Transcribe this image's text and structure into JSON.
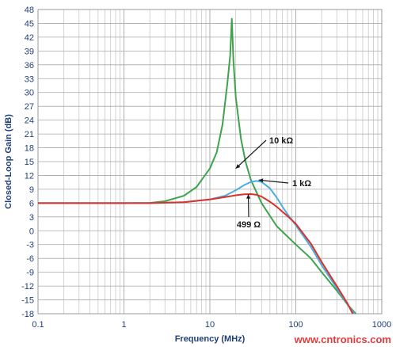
{
  "chart_data": {
    "type": "line",
    "xlabel": "Frequency (MHz)",
    "ylabel": "Closed-Loop Gain (dB)",
    "xscale": "log",
    "xlim": [
      0.1,
      1000
    ],
    "ylim": [
      -18,
      48
    ],
    "xticks": [
      "0.1",
      "1",
      "10",
      "100",
      "1000"
    ],
    "yticks": [
      "48",
      "45",
      "42",
      "39",
      "36",
      "33",
      "30",
      "27",
      "24",
      "21",
      "18",
      "15",
      "12",
      "9",
      "6",
      "3",
      "0",
      "-3",
      "-6",
      "-9",
      "-12",
      "-15",
      "-18"
    ],
    "grid": true,
    "series": [
      {
        "name": "10 kΩ",
        "color": "#3fa34d",
        "points": [
          [
            0.1,
            6
          ],
          [
            1,
            6
          ],
          [
            2,
            6.05
          ],
          [
            3,
            6.4
          ],
          [
            5,
            7.6
          ],
          [
            7,
            9.5
          ],
          [
            10,
            13.5
          ],
          [
            12,
            17
          ],
          [
            14,
            23
          ],
          [
            16,
            32
          ],
          [
            17.2,
            38
          ],
          [
            18,
            46
          ],
          [
            18.8,
            37
          ],
          [
            20,
            29
          ],
          [
            23,
            20
          ],
          [
            26,
            15
          ],
          [
            30,
            11
          ],
          [
            40,
            6
          ],
          [
            60,
            1
          ],
          [
            100,
            -3
          ],
          [
            150,
            -6
          ],
          [
            200,
            -9
          ],
          [
            300,
            -13
          ],
          [
            400,
            -16
          ],
          [
            500,
            -18
          ]
        ]
      },
      {
        "name": "1 kΩ",
        "color": "#4aaee0",
        "points": [
          [
            0.1,
            6
          ],
          [
            1,
            6
          ],
          [
            2,
            6
          ],
          [
            5,
            6.2
          ],
          [
            10,
            6.8
          ],
          [
            15,
            7.6
          ],
          [
            20,
            8.8
          ],
          [
            25,
            9.9
          ],
          [
            30,
            10.6
          ],
          [
            35,
            10.8
          ],
          [
            40,
            10.6
          ],
          [
            50,
            9.2
          ],
          [
            60,
            7.2
          ],
          [
            70,
            5.2
          ],
          [
            80,
            3.6
          ],
          [
            100,
            1.2
          ],
          [
            150,
            -3.5
          ],
          [
            200,
            -7.5
          ],
          [
            300,
            -12.5
          ],
          [
            400,
            -16
          ],
          [
            480,
            -18
          ]
        ]
      },
      {
        "name": "499 Ω",
        "color": "#d9312b",
        "points": [
          [
            0.1,
            6
          ],
          [
            1,
            6
          ],
          [
            2,
            6
          ],
          [
            5,
            6.2
          ],
          [
            10,
            6.8
          ],
          [
            15,
            7.3
          ],
          [
            20,
            7.7
          ],
          [
            25,
            7.9
          ],
          [
            30,
            7.95
          ],
          [
            35,
            7.8
          ],
          [
            40,
            7.4
          ],
          [
            50,
            6.3
          ],
          [
            60,
            5.2
          ],
          [
            80,
            3.2
          ],
          [
            100,
            1.5
          ],
          [
            150,
            -2.8
          ],
          [
            200,
            -6.8
          ],
          [
            300,
            -12
          ],
          [
            400,
            -15.8
          ],
          [
            460,
            -18
          ]
        ]
      }
    ],
    "annotations": [
      {
        "label": "10 kΩ",
        "series": "10 kΩ",
        "at": [
          20,
          13.5
        ]
      },
      {
        "label": "1 kΩ",
        "series": "1 kΩ",
        "at": [
          37,
          11
        ]
      },
      {
        "label": "499 Ω",
        "series": "499 Ω",
        "at": [
          28,
          7.9
        ]
      }
    ]
  },
  "watermark": "www.cntronics.com"
}
